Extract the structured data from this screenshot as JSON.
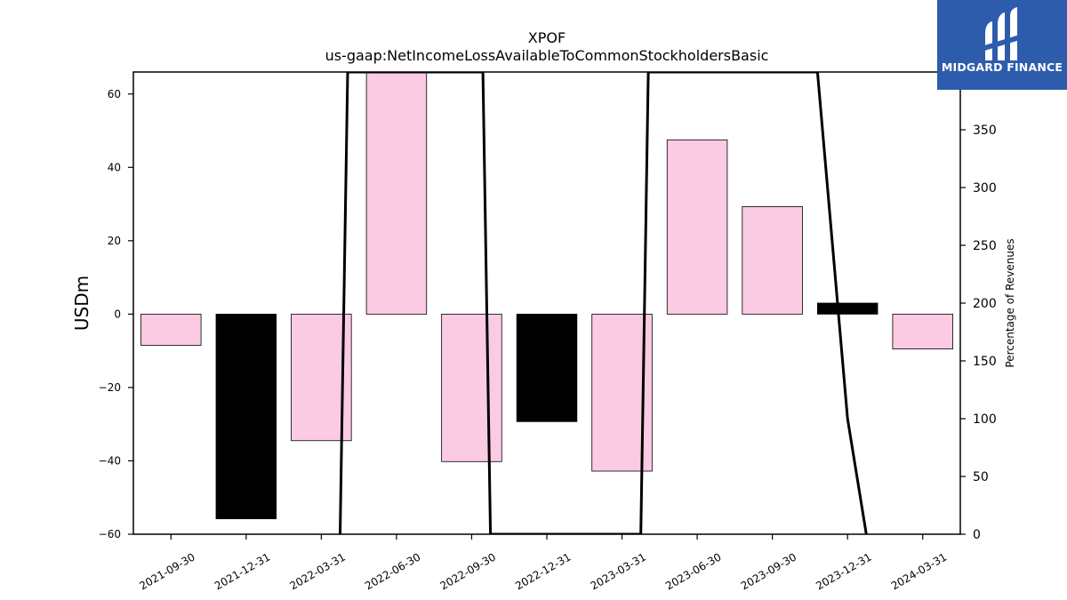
{
  "chart_data": {
    "type": "bar",
    "title": "XPOF",
    "subtitle": "us-gaap:NetIncomeLossAvailableToCommonStockholdersBasic",
    "ylabel": "USDm",
    "y2label": "Percentage of Revenues",
    "categories": [
      "2021-09-30",
      "2021-12-31",
      "2022-03-31",
      "2022-06-30",
      "2022-09-30",
      "2022-12-31",
      "2023-03-31",
      "2023-06-30",
      "2023-09-30",
      "2023-12-31",
      "2024-03-31"
    ],
    "values": [
      -8.5,
      -55.8,
      -34.5,
      66.0,
      -40.2,
      -29.3,
      -42.8,
      47.5,
      29.3,
      3.0,
      -9.5
    ],
    "bar_colors": [
      "#fbcae3",
      "#000000",
      "#fbcae3",
      "#fbcae3",
      "#fbcae3",
      "#000000",
      "#fbcae3",
      "#fbcae3",
      "#fbcae3",
      "#000000",
      "#fbcae3"
    ],
    "ylim": [
      -60,
      66
    ],
    "y_ticks": [
      60,
      40,
      20,
      0,
      -20,
      -40,
      -60
    ],
    "y_tick_labels": [
      "60",
      "40",
      "20",
      "0",
      "−20",
      "−40",
      "−60"
    ],
    "y2lim": [
      0,
      400
    ],
    "y2_ticks": [
      350,
      300,
      250,
      200,
      150,
      100,
      50,
      0
    ],
    "y2_tick_labels": [
      "350",
      "300",
      "250",
      "200",
      "150",
      "100",
      "50",
      "0"
    ],
    "line_series": {
      "axis": "right",
      "color": "#000000",
      "x_positions": [
        2.25,
        2.35,
        4.15,
        4.25,
        6.25,
        6.35,
        8.6,
        9.0,
        9.25
      ],
      "values": [
        0,
        400,
        400,
        0,
        0,
        400,
        400,
        100,
        0
      ]
    },
    "grid": false,
    "legend": "none"
  },
  "logo": {
    "text": "MIDGARD FINANCE",
    "color": "#2e5cad"
  }
}
